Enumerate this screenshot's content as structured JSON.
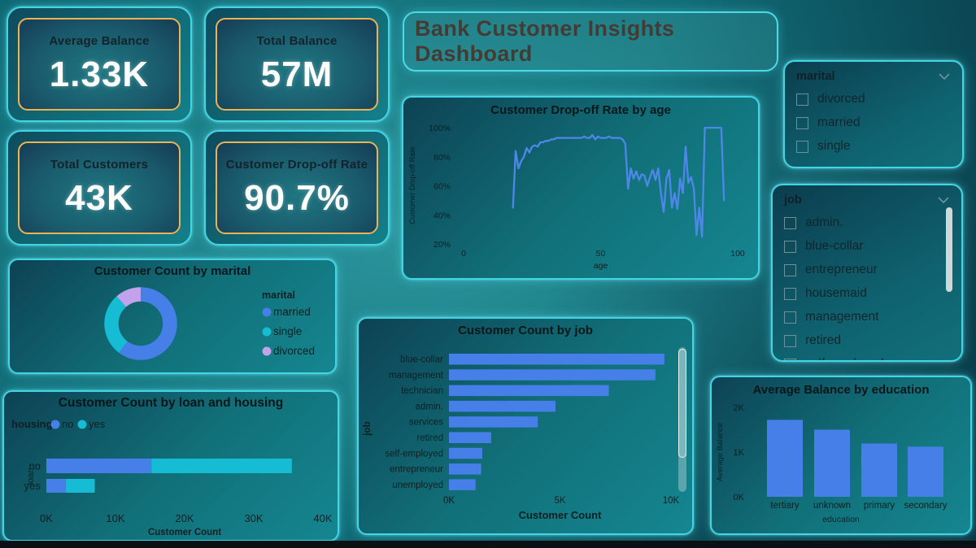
{
  "page_title": "Bank Customer Insights Dashboard",
  "kpis": [
    {
      "label": "Average Balance",
      "value": "1.33K"
    },
    {
      "label": "Total Balance",
      "value": "57M"
    },
    {
      "label": "Total Customers",
      "value": "43K"
    },
    {
      "label": "Customer Drop-off Rate",
      "value": "90.7%"
    }
  ],
  "slicers": {
    "marital": {
      "header": "marital",
      "items": [
        "divorced",
        "married",
        "single"
      ]
    },
    "job": {
      "header": "job",
      "items": [
        "admin.",
        "blue-collar",
        "entrepreneur",
        "housemaid",
        "management",
        "retired",
        "self-employed"
      ]
    }
  },
  "colors": {
    "blue": "#477fe9",
    "cyan": "#16bcd4",
    "purple": "#c2a2ea",
    "gold": "#ecb254",
    "card_border": "#41d6e6",
    "dark_text": "#0b2126",
    "title_text": "#453b33"
  },
  "chart_data": [
    {
      "id": "dropoff_by_age",
      "type": "line",
      "title": "Customer Drop-off Rate by age",
      "xlabel": "age",
      "ylabel": "Customer Drop-off Rate",
      "xticks": [
        0,
        50,
        100
      ],
      "yticks": [
        "20%",
        "40%",
        "60%",
        "80%",
        "100%"
      ],
      "xlim": [
        0,
        100
      ],
      "ylim": [
        20,
        100
      ],
      "line_color": "#4f86ea",
      "points": [
        [
          18,
          45
        ],
        [
          19,
          84
        ],
        [
          20,
          72
        ],
        [
          21,
          77
        ],
        [
          22,
          80
        ],
        [
          23,
          86
        ],
        [
          24,
          83
        ],
        [
          25,
          87
        ],
        [
          26,
          88
        ],
        [
          27,
          87
        ],
        [
          28,
          90
        ],
        [
          29,
          90
        ],
        [
          30,
          91
        ],
        [
          31,
          91
        ],
        [
          32,
          92
        ],
        [
          33,
          92
        ],
        [
          34,
          93
        ],
        [
          35,
          93
        ],
        [
          36,
          93
        ],
        [
          37,
          93
        ],
        [
          38,
          93
        ],
        [
          39,
          93
        ],
        [
          40,
          93
        ],
        [
          41,
          93
        ],
        [
          42,
          93
        ],
        [
          43,
          93
        ],
        [
          44,
          94
        ],
        [
          45,
          93
        ],
        [
          46,
          93
        ],
        [
          47,
          95
        ],
        [
          48,
          92
        ],
        [
          49,
          94
        ],
        [
          50,
          93
        ],
        [
          51,
          93
        ],
        [
          52,
          93
        ],
        [
          53,
          94
        ],
        [
          54,
          93
        ],
        [
          55,
          93
        ],
        [
          56,
          93
        ],
        [
          57,
          93
        ],
        [
          58,
          92
        ],
        [
          59,
          89
        ],
        [
          60,
          58
        ],
        [
          61,
          72
        ],
        [
          62,
          65
        ],
        [
          63,
          70
        ],
        [
          64,
          64
        ],
        [
          65,
          68
        ],
        [
          66,
          67
        ],
        [
          67,
          60
        ],
        [
          68,
          66
        ],
        [
          69,
          71
        ],
        [
          70,
          64
        ],
        [
          71,
          72
        ],
        [
          72,
          55
        ],
        [
          73,
          42
        ],
        [
          74,
          65
        ],
        [
          75,
          71
        ],
        [
          76,
          45
        ],
        [
          77,
          55
        ],
        [
          78,
          44
        ],
        [
          79,
          65
        ],
        [
          80,
          55
        ],
        [
          81,
          87
        ],
        [
          82,
          62
        ],
        [
          83,
          66
        ],
        [
          84,
          58
        ],
        [
          85,
          26
        ],
        [
          86,
          45
        ],
        [
          87,
          25
        ],
        [
          88,
          100
        ],
        [
          89,
          100
        ],
        [
          90,
          100
        ],
        [
          91,
          100
        ],
        [
          92,
          100
        ],
        [
          93,
          100
        ],
        [
          94,
          100
        ],
        [
          95,
          50
        ]
      ]
    },
    {
      "id": "count_by_marital",
      "type": "pie",
      "title": "Customer Count by marital",
      "legend_title": "marital",
      "legend_position": "right",
      "labels": [
        "married",
        "single",
        "divorced"
      ],
      "values_pct": [
        60.2,
        28.3,
        11.5
      ],
      "colors": [
        "#477fe9",
        "#16bcd4",
        "#c2a2ea"
      ]
    },
    {
      "id": "count_by_loan_housing",
      "type": "bar",
      "orientation": "horizontal-stacked",
      "title": "Customer Count by loan and housing",
      "legend_title": "housing",
      "categories": [
        "no",
        "yes"
      ],
      "series": [
        {
          "name": "no",
          "color": "#477fe9",
          "values": [
            15.2,
            2.8
          ]
        },
        {
          "name": "yes",
          "color": "#16bcd4",
          "values": [
            20.3,
            4.2
          ]
        }
      ],
      "value_unit": "K",
      "xticks": [
        "0K",
        "10K",
        "20K",
        "30K",
        "40K"
      ],
      "xlim": [
        0,
        40
      ],
      "xlabel": "Customer Count",
      "ylabel": "loan"
    },
    {
      "id": "count_by_job",
      "type": "bar",
      "orientation": "horizontal",
      "title": "Customer Count by job",
      "categories": [
        "blue-collar",
        "management",
        "technician",
        "admin.",
        "services",
        "retired",
        "self-employed",
        "entrepreneur",
        "unemployed"
      ],
      "values": [
        9.7,
        9.3,
        7.2,
        4.8,
        4.0,
        1.9,
        1.5,
        1.45,
        1.2
      ],
      "value_unit": "K",
      "xticks": [
        "0K",
        "5K",
        "10K"
      ],
      "xlim": [
        0,
        10
      ],
      "xlabel": "Customer Count",
      "ylabel": "job",
      "bar_color": "#477fe9",
      "has_scrollbar": true
    },
    {
      "id": "avg_balance_by_education",
      "type": "bar",
      "orientation": "vertical",
      "title": "Average Balance by education",
      "categories": [
        "tertiary",
        "unknown",
        "primary",
        "secondary"
      ],
      "values": [
        1.72,
        1.5,
        1.19,
        1.12
      ],
      "value_unit": "K",
      "yticks": [
        "0K",
        "1K",
        "2K"
      ],
      "ylim": [
        0,
        2
      ],
      "xlabel": "education",
      "ylabel": "Average Balance",
      "bar_color": "#477fe9"
    }
  ]
}
